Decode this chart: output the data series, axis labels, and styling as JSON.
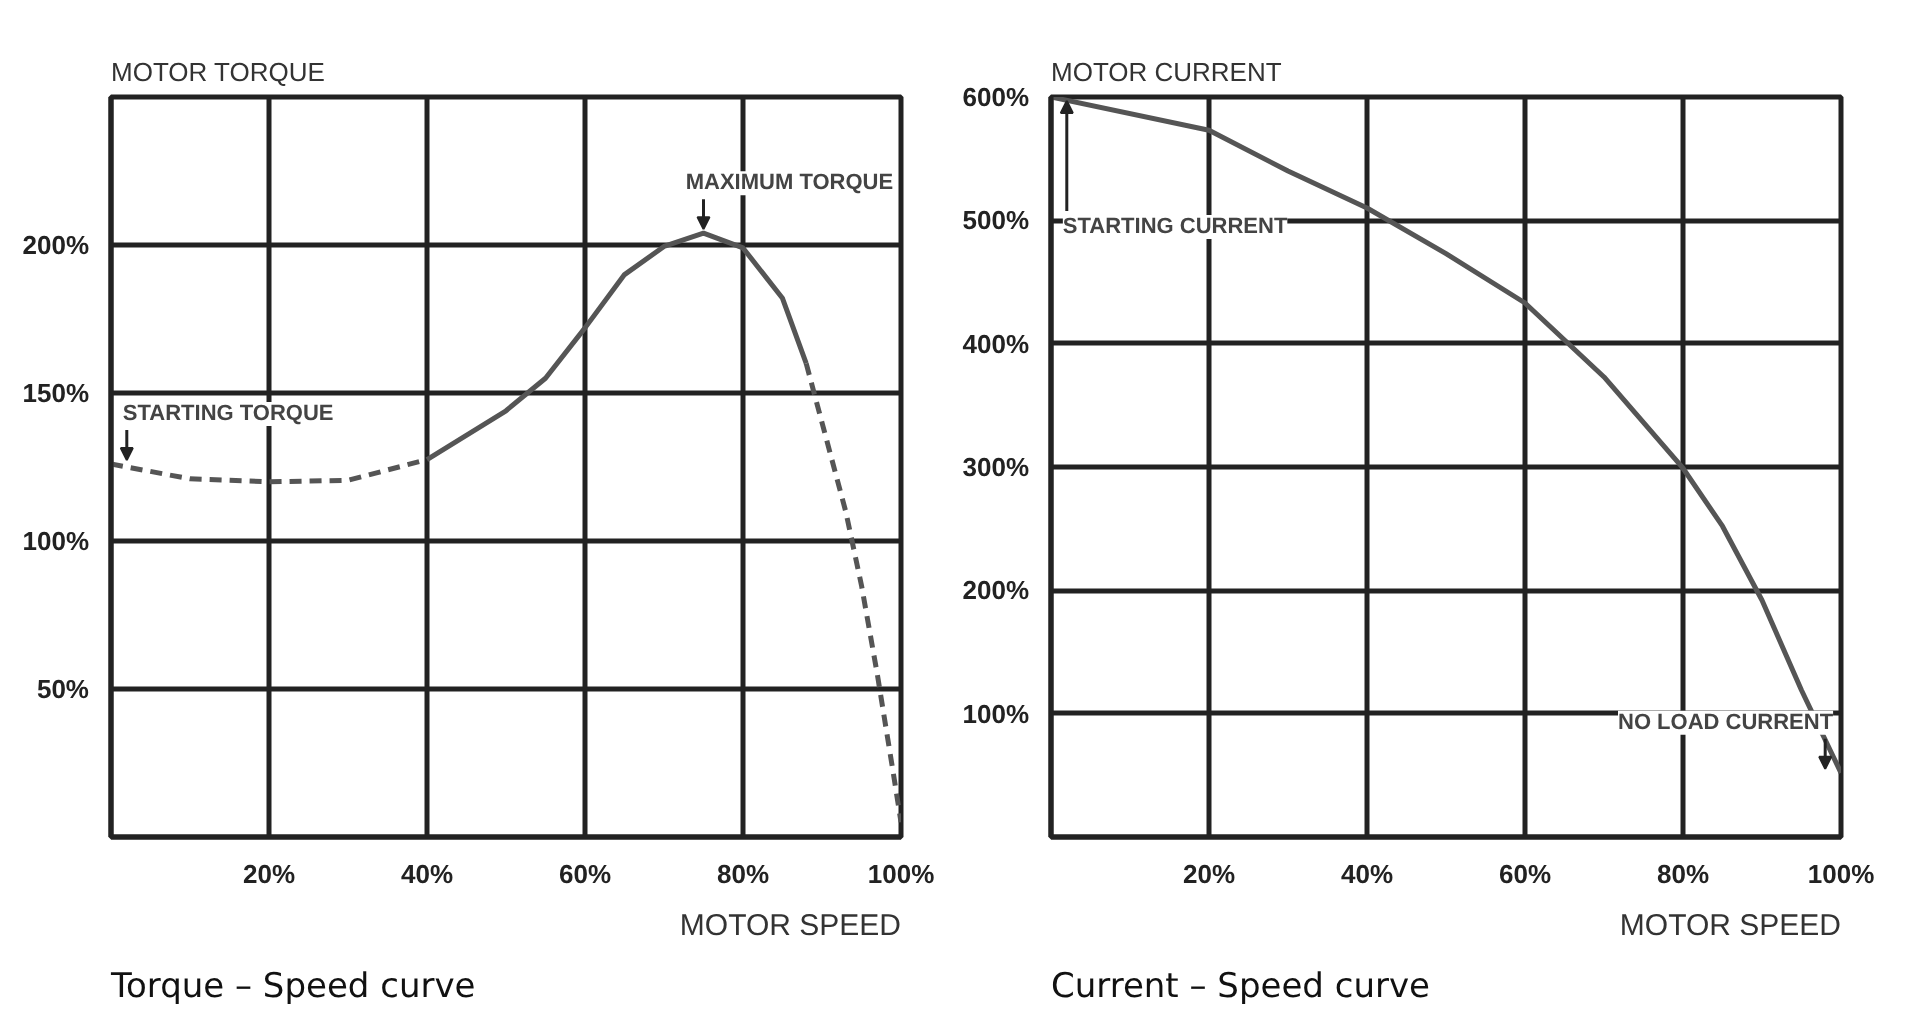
{
  "chart_data": [
    {
      "type": "line",
      "title": "Torque – Speed curve",
      "xlabel": "MOTOR SPEED",
      "ylabel": "MOTOR TORQUE",
      "xlim": [
        0,
        100
      ],
      "ylim": [
        0,
        250
      ],
      "xticks": [
        {
          "value": 20,
          "label": "20%"
        },
        {
          "value": 40,
          "label": "40%"
        },
        {
          "value": 60,
          "label": "60%"
        },
        {
          "value": 80,
          "label": "80%"
        },
        {
          "value": 100,
          "label": "100%"
        }
      ],
      "yticks": [
        {
          "value": 50,
          "label": "50%"
        },
        {
          "value": 100,
          "label": "100%"
        },
        {
          "value": 150,
          "label": "150%"
        },
        {
          "value": 200,
          "label": "200%"
        }
      ],
      "grid": true,
      "series": [
        {
          "color": "#555555",
          "line_style": "dashed",
          "x": [
            0,
            10,
            20,
            30,
            40
          ],
          "values": [
            126,
            121,
            120,
            120.5,
            127.5
          ]
        },
        {
          "color": "#555555",
          "line_style": "solid",
          "x": [
            40,
            50,
            55,
            60,
            65,
            70,
            75,
            80,
            85,
            88
          ],
          "values": [
            127.5,
            144,
            155,
            172,
            190,
            199.5,
            204,
            199,
            182,
            160
          ]
        },
        {
          "color": "#555555",
          "line_style": "dashed",
          "x": [
            88,
            90,
            93,
            95,
            97,
            99,
            100
          ],
          "values": [
            160,
            140,
            110,
            85,
            55,
            22,
            5
          ]
        }
      ],
      "annotations": [
        {
          "text": "STARTING TORQUE",
          "x": 0,
          "y": 126
        },
        {
          "text": "MAXIMUM TORQUE",
          "x": 75,
          "y": 204
        }
      ]
    },
    {
      "type": "line",
      "title": "Current – Speed curve",
      "xlabel": "MOTOR SPEED",
      "ylabel": "MOTOR CURRENT",
      "xlim": [
        0,
        100
      ],
      "ylim": [
        0,
        600
      ],
      "xticks": [
        {
          "value": 20,
          "label": "20%"
        },
        {
          "value": 40,
          "label": "40%"
        },
        {
          "value": 60,
          "label": "60%"
        },
        {
          "value": 80,
          "label": "80%"
        },
        {
          "value": 100,
          "label": "100%"
        }
      ],
      "yticks": [
        {
          "value": 100,
          "label": "100%"
        },
        {
          "value": 200,
          "label": "200%"
        },
        {
          "value": 300,
          "label": "300%"
        },
        {
          "value": 400,
          "label": "400%"
        },
        {
          "value": 500,
          "label": "500%"
        },
        {
          "value": 600,
          "label": "600%"
        }
      ],
      "grid": true,
      "series": [
        {
          "color": "#555555",
          "line_style": "solid",
          "x": [
            0,
            20,
            30,
            40,
            50,
            60,
            70,
            80,
            85,
            90,
            95,
            100
          ],
          "values": [
            600,
            573,
            540,
            510,
            473,
            433,
            373,
            299,
            252,
            192,
            119,
            52
          ]
        }
      ],
      "annotations": [
        {
          "text": "STARTING CURRENT",
          "x": 0,
          "y": 600
        },
        {
          "text": "NO LOAD CURRENT",
          "x": 100,
          "y": 52
        }
      ]
    }
  ]
}
